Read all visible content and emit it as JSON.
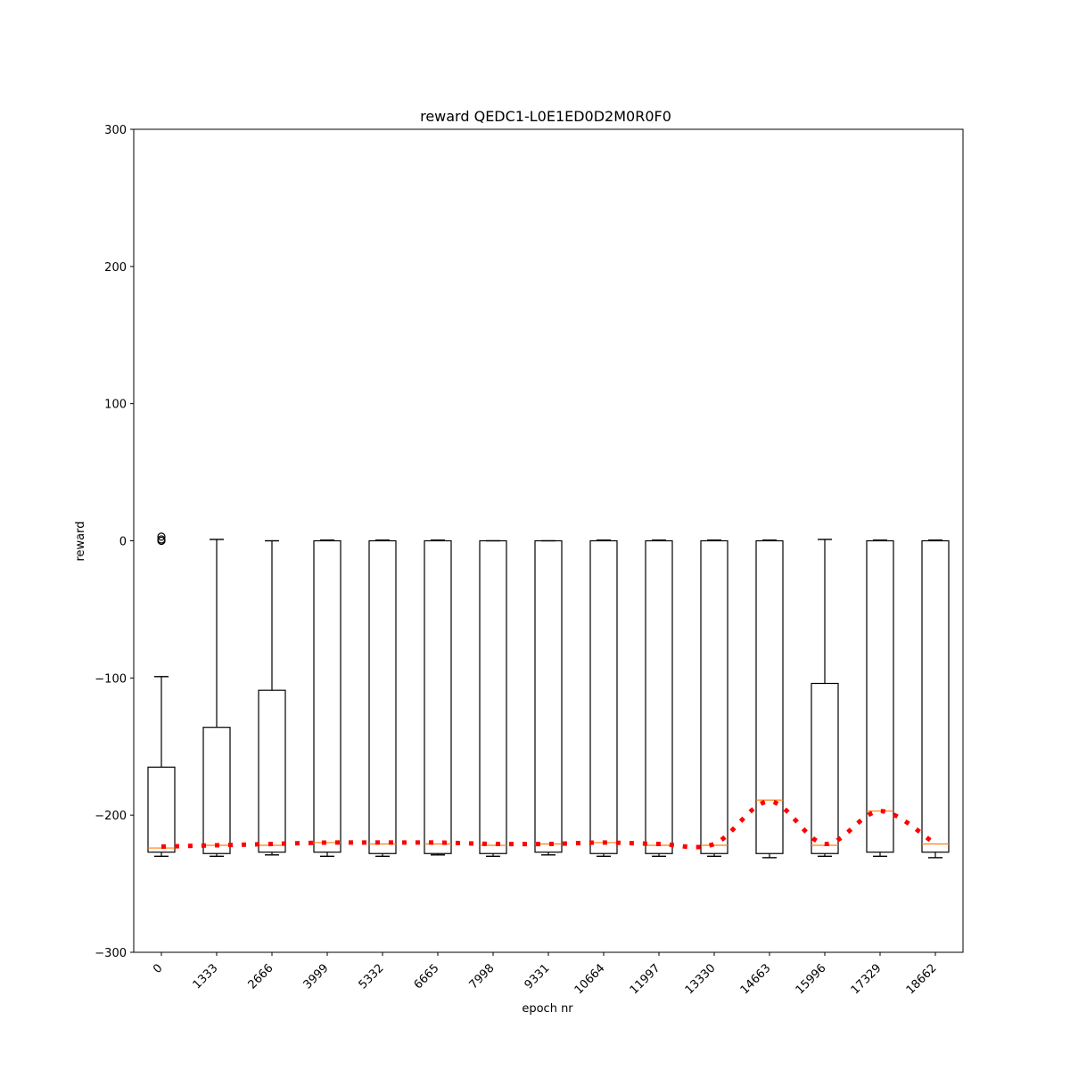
{
  "chart_data": {
    "type": "box",
    "title": "reward QEDC1-L0E1ED0D2M0R0F0",
    "xlabel": "epoch nr",
    "ylabel": "reward",
    "ylim": [
      -300,
      300
    ],
    "yticks": [
      300,
      200,
      100,
      0,
      -100,
      -200,
      -300
    ],
    "ytick_labels": [
      "300",
      "200",
      "100",
      "0",
      "−100",
      "−200",
      "−300"
    ],
    "categories": [
      "0",
      "1333",
      "2666",
      "3999",
      "5332",
      "6665",
      "7998",
      "9331",
      "10664",
      "11997",
      "13330",
      "14663",
      "15996",
      "17329",
      "18662"
    ],
    "boxes": [
      {
        "whisker_low": -230,
        "q1": -227,
        "median": -224,
        "q3": -165,
        "whisker_high": -99,
        "fliers": [
          0,
          1,
          3
        ]
      },
      {
        "whisker_low": -230,
        "q1": -228,
        "median": -222,
        "q3": -136,
        "whisker_high": 1,
        "fliers": []
      },
      {
        "whisker_low": -229,
        "q1": -227,
        "median": -222,
        "q3": -109,
        "whisker_high": 0,
        "fliers": []
      },
      {
        "whisker_low": -230,
        "q1": -227,
        "median": -220,
        "q3": 0,
        "whisker_high": 0.5,
        "fliers": []
      },
      {
        "whisker_low": -230,
        "q1": -228,
        "median": -221,
        "q3": 0,
        "whisker_high": 0.5,
        "fliers": []
      },
      {
        "whisker_low": -229,
        "q1": -228,
        "median": -221,
        "q3": 0,
        "whisker_high": 0.5,
        "fliers": []
      },
      {
        "whisker_low": -230,
        "q1": -228,
        "median": -222,
        "q3": 0,
        "whisker_high": 0,
        "fliers": []
      },
      {
        "whisker_low": -229,
        "q1": -227,
        "median": -221,
        "q3": 0,
        "whisker_high": 0,
        "fliers": []
      },
      {
        "whisker_low": -230,
        "q1": -228,
        "median": -220,
        "q3": 0,
        "whisker_high": 0.5,
        "fliers": []
      },
      {
        "whisker_low": -230,
        "q1": -228,
        "median": -222,
        "q3": 0,
        "whisker_high": 0.5,
        "fliers": []
      },
      {
        "whisker_low": -230,
        "q1": -228,
        "median": -222,
        "q3": 0,
        "whisker_high": 0.5,
        "fliers": []
      },
      {
        "whisker_low": -231,
        "q1": -228,
        "median": -189,
        "q3": 0,
        "whisker_high": 0.5,
        "fliers": []
      },
      {
        "whisker_low": -230,
        "q1": -228,
        "median": -222,
        "q3": -104,
        "whisker_high": 1,
        "fliers": []
      },
      {
        "whisker_low": -230,
        "q1": -227,
        "median": -197,
        "q3": 0,
        "whisker_high": 0.5,
        "fliers": []
      },
      {
        "whisker_low": -231,
        "q1": -227,
        "median": -221,
        "q3": 0,
        "whisker_high": 0.5,
        "fliers": []
      }
    ],
    "trend": {
      "color": "#ff0000",
      "style": "dotted",
      "values": [
        -223,
        -222,
        -221,
        -220,
        -220,
        -220,
        -221,
        -221,
        -220,
        -221,
        -221,
        -190,
        -221,
        -197,
        -221
      ]
    },
    "median_color": "#ff7f0e",
    "grid": false
  }
}
